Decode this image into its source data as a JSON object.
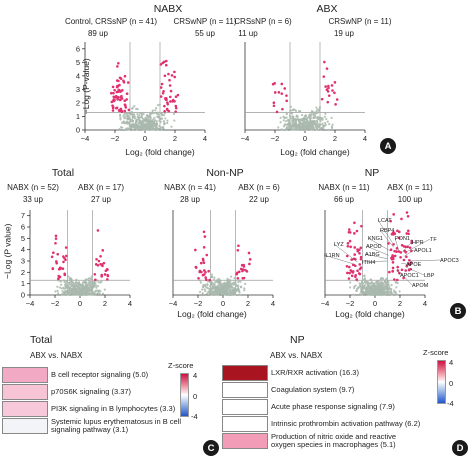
{
  "panels": {
    "A": {
      "badge": "A",
      "plots": [
        {
          "title": "NABX",
          "left_group": "Control, CRSsNP (n = 41)",
          "right_group": "CRSwNP (n = 11)",
          "left_count": "89 up",
          "right_count": "55 up",
          "xlabel": "Log₂ (fold change)",
          "ylabel": "−Log (P-value)",
          "x_ticks": [
            "−4",
            "−2",
            "0",
            "2",
            "4"
          ],
          "y_ticks": [
            "0",
            "1",
            "2",
            "3",
            "4",
            "5",
            "6"
          ]
        },
        {
          "title": "ABX",
          "left_group": "CRSsNP (n = 6)",
          "right_group": "CRSwNP (n = 11)",
          "left_count": "11 up",
          "right_count": "19 up",
          "xlabel": "Log₂ (fold change)",
          "ylabel": "",
          "x_ticks": [
            "−4",
            "−2",
            "0",
            "2",
            "4"
          ],
          "y_ticks": []
        }
      ]
    },
    "B": {
      "badge": "B",
      "plots": [
        {
          "title": "Total",
          "left_group": "NABX (n = 52)",
          "right_group": "ABX (n = 17)",
          "left_count": "33 up",
          "right_count": "27 up",
          "xlabel": "",
          "ylabel": "−Log (P value)",
          "x_ticks": [
            "−4",
            "−2",
            "0",
            "2",
            "4"
          ],
          "y_ticks": [
            "0",
            "1",
            "2",
            "3",
            "4",
            "5",
            "6",
            "7"
          ]
        },
        {
          "title": "Non-NP",
          "left_group": "NABX (n = 41)",
          "right_group": "ABX (n = 6)",
          "left_count": "28 up",
          "right_count": "22 up",
          "xlabel": "Log₂ (fold change)",
          "ylabel": "",
          "x_ticks": [
            "−4",
            "−2",
            "0",
            "2",
            "4"
          ],
          "y_ticks": []
        },
        {
          "title": "NP",
          "left_group": "NABX (n = 11)",
          "right_group": "ABX (n = 11)",
          "left_count": "66 up",
          "right_count": "100 up",
          "xlabel": "Log₂ (fold change)",
          "ylabel": "",
          "x_ticks": [
            "−4",
            "−2",
            "0",
            "2",
            "4"
          ],
          "y_ticks": [],
          "gene_labels": [
            "LCAT",
            "RBP4",
            "KNG1",
            "PON1",
            "HPR",
            "TF",
            "APOD",
            "APOL1",
            "A1BG",
            "ITIH4",
            "LYZ",
            "IL1RN",
            "APOE",
            "APOC3",
            "APOC1",
            "LBP",
            "APOM"
          ]
        }
      ]
    },
    "C": {
      "badge": "C",
      "title": "Total",
      "subtitle": "ABX vs. NABX",
      "pathways": [
        {
          "label": "B cell receptor signaling",
          "score": "(5.0)",
          "color": "#f2aac4"
        },
        {
          "label": "p70S6K signaling",
          "score": "(3.37)",
          "color": "#f7c4d6"
        },
        {
          "label": "PI3K signaling in B lymphocytes",
          "score": "(3.3)",
          "color": "#f7c8d9"
        },
        {
          "label": "Systemic lupus erythematosus in B cell signaling pathway",
          "score": "(3.1)",
          "color": "#f2f4f8"
        }
      ],
      "zscore_title": "Z-score",
      "zscore_max": "4",
      "zscore_mid": "0",
      "zscore_min": "-4"
    },
    "D": {
      "badge": "D",
      "title": "NP",
      "subtitle": "ABX vs. NABX",
      "pathways": [
        {
          "label": "LXR/RXR activation",
          "score": "(16.3)",
          "color": "#a8141f"
        },
        {
          "label": "Coagulation system",
          "score": "(9.7)",
          "color": "#ffffff"
        },
        {
          "label": "Acute phase response signaling",
          "score": "(7.9)",
          "color": "#ffffff"
        },
        {
          "label": "Intrinsic prothrombin activation pathway",
          "score": "(6.2)",
          "color": "#ffffff"
        },
        {
          "label": "Production of nitric oxide and reactive oxygen species in macrophages",
          "score": "(5.1)",
          "color": "#f29cb8"
        }
      ],
      "zscore_title": "Z-score",
      "zscore_max": "4",
      "zscore_mid": "0",
      "zscore_min": "-4"
    }
  },
  "colors": {
    "significant": "#e0306f",
    "nonsignificant": "#a9b8ad",
    "threshold_line": "#9a9a9a"
  },
  "chart_data": [
    {
      "type": "scatter",
      "title": "NABX",
      "xlabel": "Log₂ (fold change)",
      "ylabel": "−Log (P-value)",
      "xlim": [
        -4,
        4
      ],
      "ylim": [
        0,
        6.5
      ],
      "fc_threshold": [
        -1,
        1
      ],
      "p_threshold": 1.3,
      "series": [
        {
          "name": "Control, CRSsNP (n = 41)",
          "up_count": 89
        },
        {
          "name": "CRSwNP (n = 11)",
          "up_count": 55
        }
      ],
      "grid": false
    },
    {
      "type": "scatter",
      "title": "ABX",
      "xlabel": "Log₂ (fold change)",
      "xlim": [
        -4,
        4
      ],
      "ylim": [
        0,
        6.5
      ],
      "fc_threshold": [
        -1,
        1
      ],
      "p_threshold": 1.3,
      "series": [
        {
          "name": "CRSsNP (n = 6)",
          "up_count": 11
        },
        {
          "name": "CRSwNP (n = 11)",
          "up_count": 19
        }
      ],
      "grid": false
    },
    {
      "type": "scatter",
      "title": "Total",
      "ylabel": "−Log (P value)",
      "xlim": [
        -4,
        4
      ],
      "ylim": [
        0,
        7.5
      ],
      "fc_threshold": [
        -1,
        1
      ],
      "p_threshold": 1.3,
      "series": [
        {
          "name": "NABX (n = 52)",
          "up_count": 33
        },
        {
          "name": "ABX (n = 17)",
          "up_count": 27
        }
      ],
      "grid": false
    },
    {
      "type": "scatter",
      "title": "Non-NP",
      "xlabel": "Log₂ (fold change)",
      "xlim": [
        -4,
        4
      ],
      "ylim": [
        0,
        7.5
      ],
      "fc_threshold": [
        -1,
        1
      ],
      "p_threshold": 1.3,
      "series": [
        {
          "name": "NABX (n = 41)",
          "up_count": 28
        },
        {
          "name": "ABX (n = 6)",
          "up_count": 22
        }
      ],
      "grid": false
    },
    {
      "type": "scatter",
      "title": "NP",
      "xlabel": "Log₂ (fold change)",
      "xlim": [
        -4,
        4
      ],
      "ylim": [
        0,
        7.5
      ],
      "fc_threshold": [
        -1,
        1
      ],
      "p_threshold": 1.3,
      "series": [
        {
          "name": "NABX (n = 11)",
          "up_count": 66
        },
        {
          "name": "ABX (n = 11)",
          "up_count": 100
        }
      ],
      "grid": false
    },
    {
      "type": "heatmap",
      "title": "Total",
      "subtitle": "ABX vs. NABX",
      "categories": [
        "B cell receptor signaling",
        "p70S6K signaling",
        "PI3K signaling in B lymphocytes",
        "Systemic lupus erythematosus in B cell signaling pathway"
      ],
      "values": [
        5.0,
        3.37,
        3.3,
        3.1
      ],
      "zscore_range": [
        -4,
        4
      ]
    },
    {
      "type": "heatmap",
      "title": "NP",
      "subtitle": "ABX vs. NABX",
      "categories": [
        "LXR/RXR activation",
        "Coagulation system",
        "Acute phase response signaling",
        "Intrinsic prothrombin activation pathway",
        "Production of nitric oxide and reactive oxygen species in macrophages"
      ],
      "values": [
        16.3,
        9.7,
        7.9,
        6.2,
        5.1
      ],
      "zscore_range": [
        -4,
        4
      ]
    }
  ]
}
